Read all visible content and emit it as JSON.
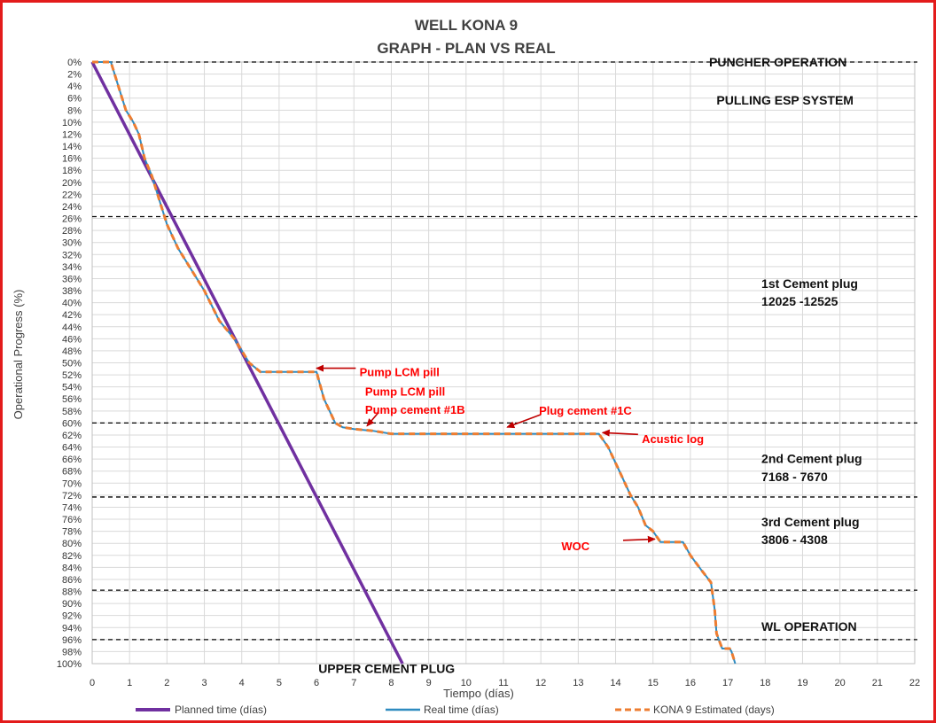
{
  "chart_data": {
    "type": "line",
    "title": "WELL KONA 9",
    "subtitle": "GRAPH  - PLAN VS REAL",
    "xlabel": "Tiempo (días)",
    "ylabel": "Operational Progress (%)",
    "xlim": [
      0,
      22
    ],
    "ylim": [
      0,
      100
    ],
    "y_inverted": true,
    "x_ticks": [
      "0",
      "1",
      "2",
      "3",
      "4",
      "5",
      "6",
      "7",
      "8",
      "9",
      "10",
      "11",
      "12",
      "13",
      "14",
      "15",
      "16",
      "17",
      "18",
      "19",
      "20",
      "21",
      "22"
    ],
    "y_ticks": [
      "0%",
      "2%",
      "4%",
      "6%",
      "8%",
      "10%",
      "12%",
      "14%",
      "16%",
      "18%",
      "20%",
      "22%",
      "24%",
      "26%",
      "28%",
      "30%",
      "32%",
      "34%",
      "36%",
      "38%",
      "40%",
      "42%",
      "44%",
      "46%",
      "48%",
      "50%",
      "52%",
      "54%",
      "56%",
      "58%",
      "60%",
      "62%",
      "64%",
      "66%",
      "68%",
      "70%",
      "72%",
      "74%",
      "76%",
      "78%",
      "80%",
      "82%",
      "84%",
      "86%",
      "88%",
      "90%",
      "92%",
      "94%",
      "96%",
      "98%",
      "100%"
    ],
    "grid": true,
    "legend_position": "bottom",
    "series": [
      {
        "name": "Planned time (días)",
        "color": "#7030a0",
        "style": "solid",
        "points": [
          [
            0,
            0
          ],
          [
            8.3,
            100
          ]
        ]
      },
      {
        "name": "Real time (días)",
        "color": "#2e8bc0",
        "style": "solid",
        "points": [
          [
            0,
            0
          ],
          [
            0.2,
            0
          ],
          [
            0.5,
            0
          ],
          [
            0.7,
            4
          ],
          [
            0.9,
            8
          ],
          [
            1.1,
            10
          ],
          [
            1.25,
            12
          ],
          [
            1.4,
            16
          ],
          [
            1.6,
            19
          ],
          [
            1.8,
            23
          ],
          [
            2.0,
            27
          ],
          [
            2.3,
            31
          ],
          [
            2.6,
            34
          ],
          [
            3.0,
            38
          ],
          [
            3.4,
            43
          ],
          [
            3.8,
            46
          ],
          [
            4.2,
            50
          ],
          [
            4.5,
            51.5
          ],
          [
            5.0,
            51.5
          ],
          [
            6.0,
            51.5
          ],
          [
            6.2,
            56
          ],
          [
            6.5,
            60
          ],
          [
            6.7,
            60.7
          ],
          [
            7.0,
            61
          ],
          [
            7.5,
            61.3
          ],
          [
            8.0,
            61.8
          ],
          [
            10.0,
            61.8
          ],
          [
            13.0,
            61.8
          ],
          [
            13.55,
            61.8
          ],
          [
            13.8,
            64
          ],
          [
            14.1,
            68
          ],
          [
            14.4,
            72
          ],
          [
            14.6,
            74
          ],
          [
            14.8,
            77
          ],
          [
            15.0,
            78
          ],
          [
            15.2,
            79.8
          ],
          [
            15.5,
            79.8
          ],
          [
            15.8,
            79.8
          ],
          [
            16.0,
            82
          ],
          [
            16.3,
            84.5
          ],
          [
            16.55,
            86.5
          ],
          [
            16.65,
            91
          ],
          [
            16.7,
            95
          ],
          [
            16.85,
            97.5
          ],
          [
            17.05,
            97.5
          ],
          [
            17.1,
            98
          ],
          [
            17.15,
            99
          ],
          [
            17.2,
            100
          ]
        ]
      },
      {
        "name": "KONA 9 Estimated (days)",
        "color": "#ed7d31",
        "style": "dashed",
        "points": [
          [
            0,
            0
          ],
          [
            0.2,
            0
          ],
          [
            0.5,
            0
          ],
          [
            0.7,
            4
          ],
          [
            0.9,
            8
          ],
          [
            1.1,
            10
          ],
          [
            1.25,
            12
          ],
          [
            1.4,
            16
          ],
          [
            1.6,
            19
          ],
          [
            1.8,
            23
          ],
          [
            2.0,
            27
          ],
          [
            2.3,
            31
          ],
          [
            2.6,
            34
          ],
          [
            3.0,
            38
          ],
          [
            3.4,
            43
          ],
          [
            3.8,
            46
          ],
          [
            4.2,
            50
          ],
          [
            4.5,
            51.5
          ],
          [
            5.0,
            51.5
          ],
          [
            6.0,
            51.5
          ],
          [
            6.2,
            56
          ],
          [
            6.5,
            60
          ],
          [
            6.7,
            60.7
          ],
          [
            7.0,
            61
          ],
          [
            7.5,
            61.3
          ],
          [
            8.0,
            61.8
          ],
          [
            10.0,
            61.8
          ],
          [
            13.0,
            61.8
          ],
          [
            13.55,
            61.8
          ],
          [
            13.8,
            64
          ],
          [
            14.1,
            68
          ],
          [
            14.4,
            72
          ],
          [
            14.6,
            74
          ],
          [
            14.8,
            77
          ],
          [
            15.0,
            78
          ],
          [
            15.2,
            79.8
          ],
          [
            15.5,
            79.8
          ],
          [
            15.8,
            79.8
          ],
          [
            16.0,
            82
          ],
          [
            16.3,
            84.5
          ],
          [
            16.55,
            86.5
          ],
          [
            16.65,
            91
          ],
          [
            16.7,
            95
          ],
          [
            16.85,
            97.5
          ],
          [
            17.05,
            97.5
          ],
          [
            17.1,
            98
          ],
          [
            17.15,
            99
          ],
          [
            17.2,
            100
          ]
        ]
      }
    ],
    "phase_lines": [
      0,
      25.7,
      60,
      72.3,
      87.8,
      96
    ]
  },
  "section_labels": [
    {
      "name": "section-puncher-operation",
      "text": "PUNCHER OPERATION",
      "x": 16.5,
      "y": 0
    },
    {
      "name": "section-pulling-esp",
      "text": "PULLING ESP SYSTEM",
      "x": 16.7,
      "y": 6.3
    },
    {
      "name": "section-first-cement-plug",
      "text": "1st Cement plug",
      "x": 17.9,
      "y": 36.8
    },
    {
      "name": "section-first-cement-plug-depth",
      "text": "12025 -12525",
      "x": 17.9,
      "y": 39.8
    },
    {
      "name": "section-second-cement-plug",
      "text": "2nd Cement plug",
      "x": 17.9,
      "y": 65.9
    },
    {
      "name": "section-second-cement-plug-depth",
      "text": "7168 - 7670",
      "x": 17.9,
      "y": 68.9
    },
    {
      "name": "section-third-cement-plug",
      "text": "3rd Cement plug",
      "x": 17.9,
      "y": 76.4
    },
    {
      "name": "section-third-cement-plug-depth",
      "text": "3806 - 4308",
      "x": 17.9,
      "y": 79.4
    },
    {
      "name": "section-wl-operation",
      "text": "WL OPERATION",
      "x": 17.9,
      "y": 93.8
    },
    {
      "name": "section-upper-cement-plug",
      "text": "UPPER CEMENT PLUG",
      "x": 6.05,
      "y": 100.8
    }
  ],
  "annotations": [
    {
      "name": "annotation-pump-lcm-pill-1",
      "text": "Pump LCM pill",
      "x": 7.15,
      "y": 51.5,
      "arrow_from": [
        7.05,
        50.9
      ],
      "arrow_to": [
        6.0,
        50.9
      ]
    },
    {
      "name": "annotation-pump-lcm-pill-2",
      "text": "Pump LCM pill",
      "x": 7.3,
      "y": 54.7
    },
    {
      "name": "annotation-pump-cement-1b",
      "text": "Pump cement #1B",
      "x": 7.3,
      "y": 57.7,
      "arrow_from": [
        7.65,
        58.3
      ],
      "arrow_to": [
        7.35,
        60.5
      ]
    },
    {
      "name": "annotation-plug-cement-1c",
      "text": "Plug cement #1C",
      "x": 11.95,
      "y": 57.9,
      "arrow_from": [
        12.0,
        58.6
      ],
      "arrow_to": [
        11.1,
        60.7
      ]
    },
    {
      "name": "annotation-acustic-log",
      "text": "Acustic log",
      "x": 14.7,
      "y": 62.6,
      "arrow_from": [
        14.6,
        61.9
      ],
      "arrow_to": [
        13.65,
        61.6
      ]
    },
    {
      "name": "annotation-woc",
      "text": "WOC",
      "x": 12.55,
      "y": 80.4,
      "arrow_from": [
        14.2,
        79.5
      ],
      "arrow_to": [
        15.05,
        79.3
      ]
    }
  ]
}
